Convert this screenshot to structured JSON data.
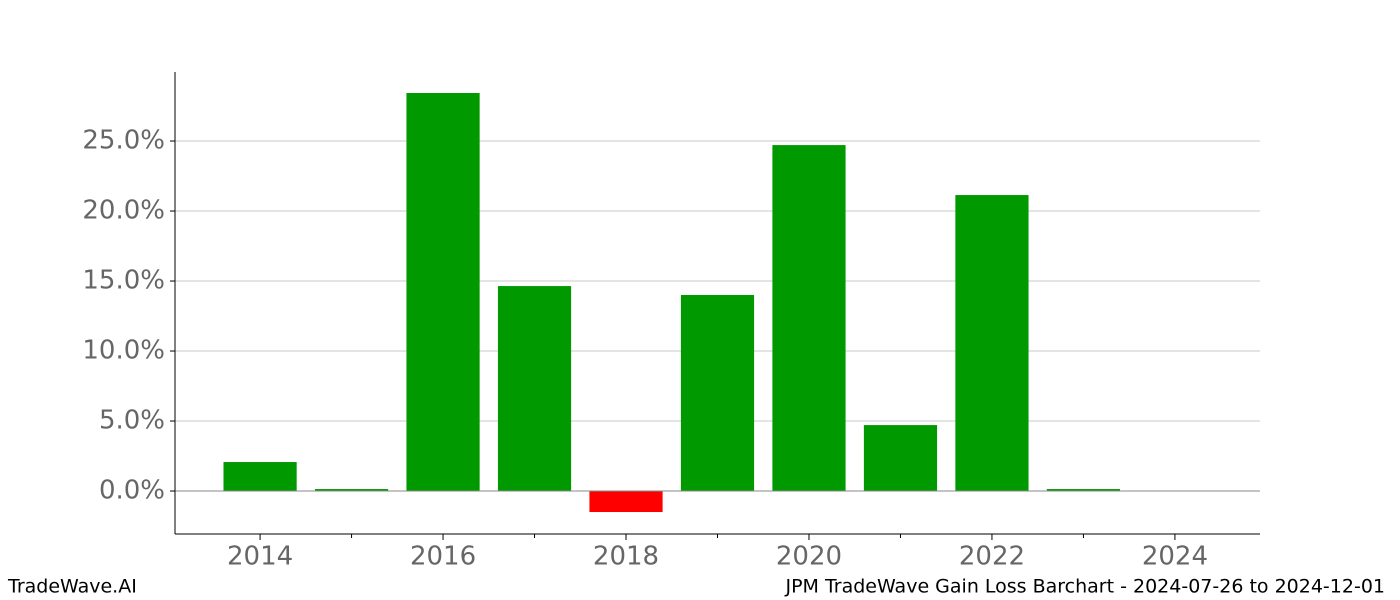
{
  "chart_data": {
    "type": "bar",
    "x": [
      2014,
      2015,
      2016,
      2017,
      2018,
      2019,
      2020,
      2021,
      2022,
      2023
    ],
    "values": [
      2.07,
      0.14,
      28.43,
      14.64,
      -1.5,
      14.0,
      24.71,
      4.71,
      21.14,
      0.14
    ],
    "color": "#009900",
    "negative_color": "#ff0000",
    "xlim": [
      2013.07,
      2024.93
    ],
    "xticks": [
      2014,
      2016,
      2018,
      2020,
      2022,
      2024
    ],
    "xminorticks": [
      2015,
      2017,
      2019,
      2021,
      2023
    ],
    "ylim": [
      -3.07,
      29.93
    ],
    "yticks": [
      {
        "value": 0,
        "label": "0.0%"
      },
      {
        "value": 5,
        "label": "5.0%"
      },
      {
        "value": 10,
        "label": "10.0%"
      },
      {
        "value": 15,
        "label": "15.0%"
      },
      {
        "value": 20,
        "label": "20.0%"
      },
      {
        "value": 25,
        "label": "25.0%"
      }
    ],
    "grid": true,
    "footer_left": "TradeWave.AI",
    "footer_right": "JPM TradeWave Gain Loss Barchart - 2024-07-26 to 2024-12-01"
  }
}
